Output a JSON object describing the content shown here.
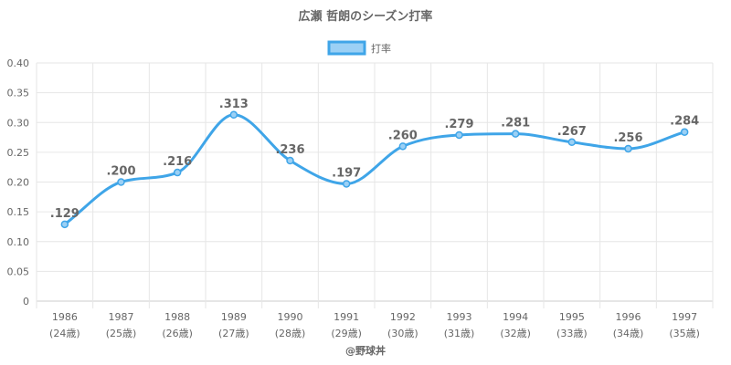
{
  "chart_data": {
    "type": "line",
    "title": "広瀬 哲朗のシーズン打率",
    "legend": {
      "position": "top",
      "label": "打率"
    },
    "categories": [
      "1986",
      "1987",
      "1988",
      "1989",
      "1990",
      "1991",
      "1992",
      "1993",
      "1994",
      "1995",
      "1996",
      "1997"
    ],
    "sub_categories": [
      "(24歳)",
      "(25歳)",
      "(26歳)",
      "(27歳)",
      "(28歳)",
      "(29歳)",
      "(30歳)",
      "(31歳)",
      "(32歳)",
      "(33歳)",
      "(34歳)",
      "(35歳)"
    ],
    "series": [
      {
        "name": "打率",
        "values": [
          0.129,
          0.2,
          0.216,
          0.313,
          0.236,
          0.197,
          0.26,
          0.279,
          0.281,
          0.267,
          0.256,
          0.284
        ],
        "labels": [
          ".129",
          ".200",
          ".216",
          ".313",
          ".236",
          ".197",
          ".260",
          ".279",
          ".281",
          ".267",
          ".256",
          ".284"
        ]
      }
    ],
    "ylim": [
      0,
      0.4
    ],
    "yticks": [
      "0",
      "0.05",
      "0.10",
      "0.15",
      "0.20",
      "0.25",
      "0.30",
      "0.35",
      "0.40"
    ],
    "grid": true,
    "colors": {
      "line": "#3fa5e8",
      "fill": "#9bd0f5",
      "grid": "#e6e6e6",
      "text": "#666666"
    },
    "credit": "@野球丼"
  }
}
